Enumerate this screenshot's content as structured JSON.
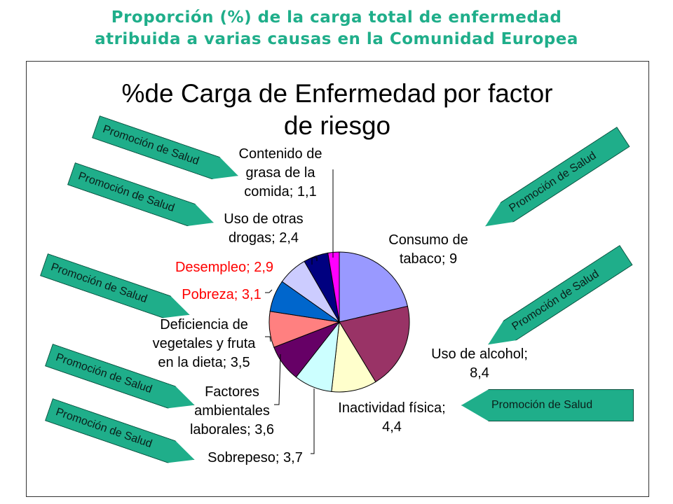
{
  "header": {
    "line1": "Proporción (%) de la carga total de enfermedad",
    "line2": "atribuida a varias causas en la Comunidad Europea"
  },
  "banner_label": "Promoción de Salud",
  "colors": {
    "title_green": "#1fae8a",
    "highlight_red": "#ff0000"
  },
  "chart_data": {
    "type": "pie",
    "title_line1": "%de Carga de Enfermedad por factor",
    "title_line2": "de riesgo",
    "slices": [
      {
        "label_lines": [
          "Consumo de",
          "tabaco; 9"
        ],
        "value": 9,
        "color": "#9999ff",
        "highlight": false
      },
      {
        "label_lines": [
          "Uso de alcohol;",
          "8,4"
        ],
        "value": 8.4,
        "color": "#993366",
        "highlight": false
      },
      {
        "label_lines": [
          "Inactividad física;",
          "4,4"
        ],
        "value": 4.4,
        "color": "#ffffcc",
        "highlight": false
      },
      {
        "label_lines": [
          "Sobrepeso; 3,7"
        ],
        "value": 3.7,
        "color": "#ccffff",
        "highlight": false
      },
      {
        "label_lines": [
          "Factores",
          "ambientales",
          "laborales; 3,6"
        ],
        "value": 3.6,
        "color": "#660066",
        "highlight": false
      },
      {
        "label_lines": [
          "Deficiencia de",
          "vegetales y fruta",
          "en la dieta; 3,5"
        ],
        "value": 3.5,
        "color": "#ff8080",
        "highlight": false
      },
      {
        "label_lines": [
          "Pobreza; 3,1"
        ],
        "value": 3.1,
        "color": "#0066cc",
        "highlight": true
      },
      {
        "label_lines": [
          "Desempleo; 2,9"
        ],
        "value": 2.9,
        "color": "#ccccff",
        "highlight": true
      },
      {
        "label_lines": [
          "Uso de otras",
          "drogas; 2,4"
        ],
        "value": 2.4,
        "color": "#000080",
        "highlight": false
      },
      {
        "label_lines": [
          "Contenido de",
          "grasa de la",
          "comida; 1,1"
        ],
        "value": 1.1,
        "color": "#ff00ff",
        "highlight": false
      }
    ]
  }
}
